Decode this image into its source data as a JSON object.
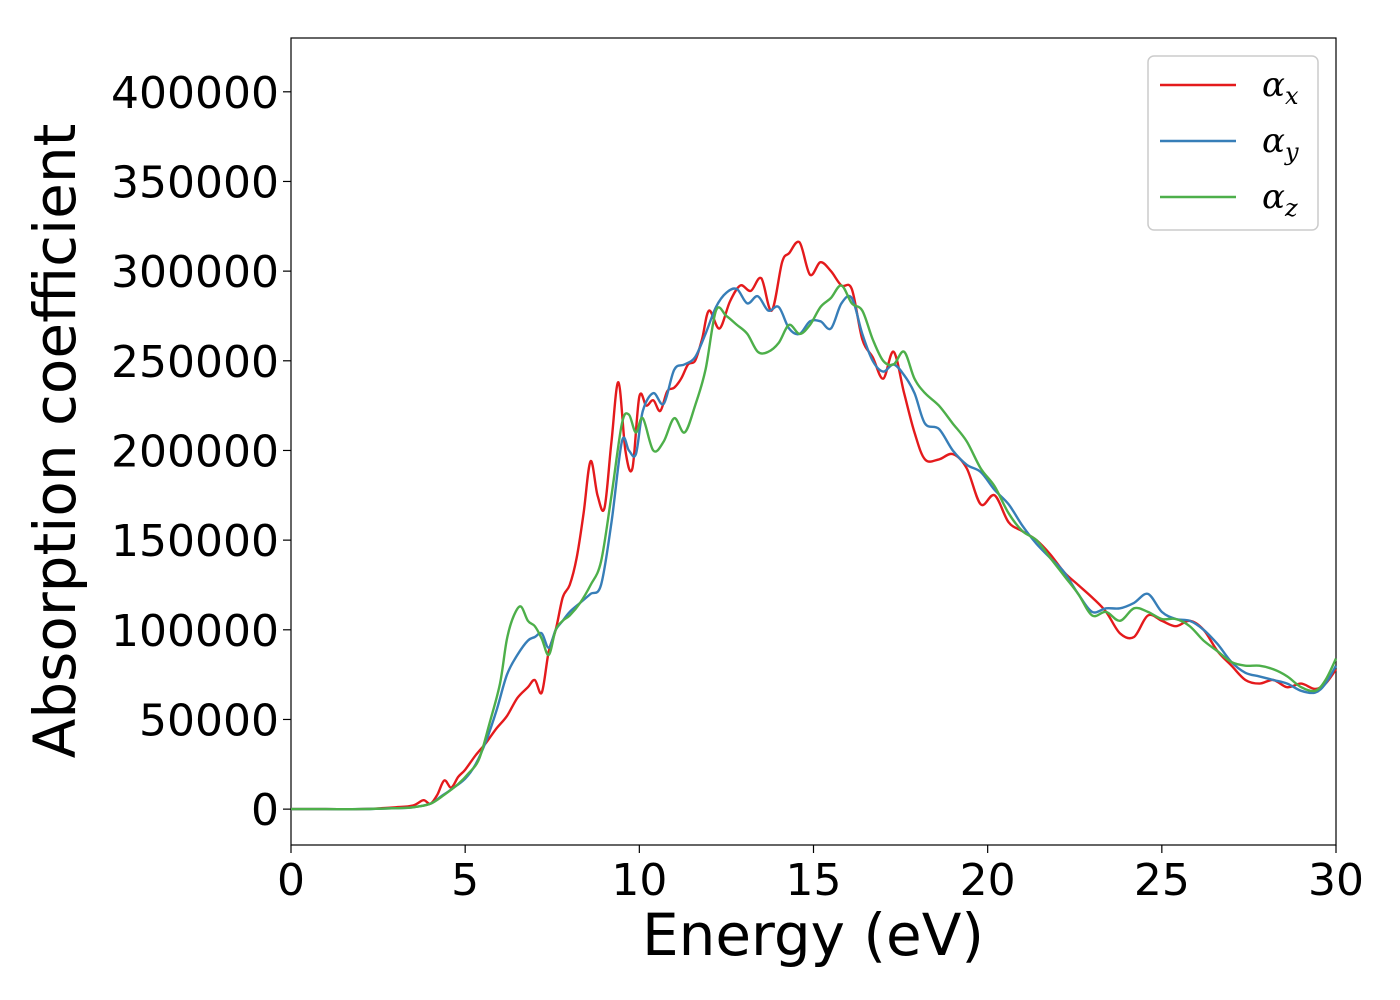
{
  "chart_data": {
    "type": "line",
    "title": "",
    "xlabel": "Energy (eV)",
    "ylabel": "Absorption coefficient",
    "xlim": [
      0,
      30
    ],
    "ylim": [
      -20000,
      430000
    ],
    "xticks": [
      0,
      5,
      10,
      15,
      20,
      25,
      30
    ],
    "yticks": [
      0,
      50000,
      100000,
      150000,
      200000,
      250000,
      300000,
      350000,
      400000
    ],
    "xtick_labels": [
      "0",
      "5",
      "10",
      "15",
      "20",
      "25",
      "30"
    ],
    "ytick_labels": [
      "0",
      "50000",
      "100000",
      "150000",
      "200000",
      "250000",
      "300000",
      "350000",
      "400000"
    ],
    "grid": false,
    "legend_position": "top-right",
    "series": [
      {
        "name": "α_x",
        "symbol": "α",
        "subscript": "x",
        "color": "#e41a1c",
        "x": [
          0,
          1,
          2,
          3,
          3.5,
          3.8,
          4.0,
          4.2,
          4.4,
          4.6,
          4.8,
          5.0,
          5.3,
          5.6,
          5.9,
          6.2,
          6.5,
          6.8,
          7.0,
          7.2,
          7.4,
          7.6,
          7.8,
          8.0,
          8.2,
          8.4,
          8.6,
          8.8,
          9.0,
          9.2,
          9.4,
          9.6,
          9.8,
          10.0,
          10.2,
          10.4,
          10.6,
          10.8,
          11.0,
          11.2,
          11.4,
          11.6,
          11.8,
          12.0,
          12.3,
          12.6,
          12.9,
          13.2,
          13.5,
          13.8,
          14.1,
          14.3,
          14.6,
          14.9,
          15.2,
          15.5,
          15.8,
          16.1,
          16.4,
          16.7,
          17.0,
          17.3,
          17.6,
          17.9,
          18.2,
          18.6,
          19.0,
          19.4,
          19.8,
          20.2,
          20.6,
          21.0,
          21.4,
          21.8,
          22.2,
          22.6,
          23.0,
          23.4,
          23.8,
          24.2,
          24.6,
          25.0,
          25.4,
          25.8,
          26.2,
          26.6,
          27.0,
          27.4,
          27.8,
          28.2,
          28.6,
          29.0,
          29.4,
          29.7,
          30.0
        ],
        "y": [
          0,
          0,
          0,
          1000,
          2000,
          5000,
          3000,
          8000,
          16000,
          12000,
          18000,
          22000,
          30000,
          37000,
          45000,
          52000,
          62000,
          68000,
          72000,
          65000,
          88000,
          100000,
          118000,
          125000,
          140000,
          165000,
          194000,
          175000,
          168000,
          205000,
          238000,
          200000,
          190000,
          230000,
          225000,
          228000,
          222000,
          233000,
          235000,
          240000,
          248000,
          250000,
          262000,
          278000,
          268000,
          283000,
          292000,
          289000,
          296000,
          278000,
          305000,
          310000,
          316000,
          298000,
          305000,
          300000,
          292000,
          290000,
          262000,
          252000,
          240000,
          255000,
          232000,
          210000,
          195000,
          195000,
          198000,
          190000,
          170000,
          175000,
          160000,
          155000,
          150000,
          142000,
          132000,
          125000,
          118000,
          110000,
          98000,
          96000,
          108000,
          105000,
          102000,
          105000,
          100000,
          88000,
          80000,
          72000,
          70000,
          72000,
          68000,
          70000,
          67000,
          70000,
          78000
        ]
      },
      {
        "name": "α_y",
        "symbol": "α",
        "subscript": "y",
        "color": "#377eb8",
        "x": [
          0,
          1,
          2,
          3,
          3.5,
          4.0,
          4.3,
          4.6,
          5.0,
          5.3,
          5.6,
          5.9,
          6.2,
          6.5,
          6.8,
          7.0,
          7.2,
          7.4,
          7.6,
          7.8,
          8.0,
          8.3,
          8.6,
          8.9,
          9.2,
          9.5,
          9.7,
          9.9,
          10.1,
          10.4,
          10.7,
          11.0,
          11.3,
          11.6,
          11.9,
          12.2,
          12.5,
          12.8,
          13.1,
          13.4,
          13.7,
          14.0,
          14.3,
          14.6,
          14.9,
          15.2,
          15.5,
          15.8,
          16.1,
          16.4,
          16.7,
          17.0,
          17.3,
          17.6,
          17.9,
          18.2,
          18.6,
          19.0,
          19.4,
          19.8,
          20.2,
          20.6,
          21.0,
          21.4,
          21.8,
          22.2,
          22.6,
          23.0,
          23.4,
          23.8,
          24.2,
          24.6,
          25.0,
          25.4,
          25.8,
          26.2,
          26.6,
          27.0,
          27.4,
          27.8,
          28.2,
          28.6,
          29.0,
          29.4,
          29.7,
          30.0
        ],
        "y": [
          0,
          0,
          0,
          500,
          1000,
          3000,
          7000,
          11000,
          17000,
          25000,
          38000,
          55000,
          75000,
          86000,
          94000,
          96000,
          98000,
          90000,
          100000,
          105000,
          110000,
          115000,
          120000,
          125000,
          160000,
          205000,
          200000,
          198000,
          222000,
          232000,
          226000,
          245000,
          248000,
          252000,
          265000,
          280000,
          288000,
          290000,
          282000,
          286000,
          278000,
          280000,
          268000,
          265000,
          272000,
          272000,
          268000,
          282000,
          285000,
          265000,
          250000,
          244000,
          248000,
          242000,
          232000,
          215000,
          212000,
          200000,
          192000,
          188000,
          178000,
          170000,
          158000,
          148000,
          140000,
          132000,
          120000,
          110000,
          112000,
          112000,
          115000,
          120000,
          110000,
          106000,
          105000,
          100000,
          92000,
          82000,
          76000,
          74000,
          72000,
          70000,
          66000,
          65000,
          70000,
          80000
        ]
      },
      {
        "name": "α_z",
        "symbol": "α",
        "subscript": "z",
        "color": "#4daf4a",
        "x": [
          0,
          1,
          2,
          3,
          3.5,
          4.0,
          4.4,
          4.8,
          5.1,
          5.4,
          5.7,
          6.0,
          6.2,
          6.4,
          6.6,
          6.8,
          7.0,
          7.2,
          7.4,
          7.6,
          7.8,
          8.0,
          8.3,
          8.6,
          8.9,
          9.2,
          9.5,
          9.7,
          9.9,
          10.1,
          10.4,
          10.7,
          11.0,
          11.3,
          11.6,
          11.9,
          12.2,
          12.5,
          12.8,
          13.1,
          13.4,
          13.7,
          14.0,
          14.3,
          14.6,
          14.9,
          15.2,
          15.5,
          15.8,
          16.1,
          16.4,
          16.7,
          17.0,
          17.3,
          17.6,
          17.9,
          18.2,
          18.6,
          19.0,
          19.4,
          19.8,
          20.2,
          20.6,
          21.0,
          21.4,
          21.8,
          22.2,
          22.6,
          23.0,
          23.4,
          23.8,
          24.2,
          24.6,
          25.0,
          25.4,
          25.8,
          26.2,
          26.6,
          27.0,
          27.4,
          27.8,
          28.2,
          28.6,
          29.0,
          29.4,
          29.7,
          30.0
        ],
        "y": [
          0,
          0,
          0,
          500,
          1000,
          3000,
          8000,
          14000,
          20000,
          28000,
          48000,
          70000,
          95000,
          108000,
          113000,
          105000,
          102000,
          95000,
          86000,
          100000,
          105000,
          108000,
          115000,
          125000,
          138000,
          175000,
          215000,
          220000,
          210000,
          218000,
          200000,
          205000,
          218000,
          210000,
          225000,
          245000,
          278000,
          275000,
          270000,
          265000,
          255000,
          255000,
          260000,
          270000,
          265000,
          270000,
          280000,
          285000,
          292000,
          282000,
          278000,
          262000,
          250000,
          248000,
          255000,
          240000,
          232000,
          225000,
          215000,
          205000,
          190000,
          180000,
          165000,
          155000,
          150000,
          140000,
          130000,
          120000,
          108000,
          110000,
          105000,
          112000,
          110000,
          106000,
          106000,
          102000,
          94000,
          88000,
          82000,
          80000,
          80000,
          78000,
          74000,
          68000,
          66000,
          72000,
          84000
        ]
      }
    ]
  }
}
